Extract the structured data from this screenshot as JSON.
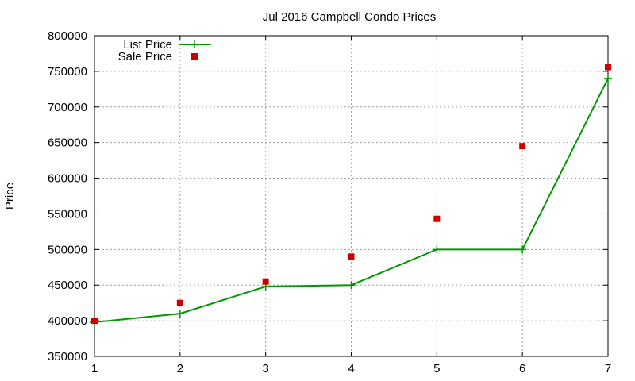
{
  "chart_data": {
    "type": "line",
    "title": "Jul 2016 Campbell Condo Prices",
    "xlabel": "",
    "ylabel": "Price",
    "x": [
      1,
      2,
      3,
      4,
      5,
      6,
      7
    ],
    "x_ticks": [
      "1",
      "2",
      "3",
      "4",
      "5",
      "6",
      "7"
    ],
    "y_ticks": [
      "350000",
      "400000",
      "450000",
      "500000",
      "550000",
      "600000",
      "650000",
      "700000",
      "750000",
      "800000"
    ],
    "xlim": [
      1,
      7
    ],
    "ylim": [
      350000,
      800000
    ],
    "grid": true,
    "legend_position": "top-left",
    "series": [
      {
        "name": "List Price",
        "style": "line-with-plus-markers",
        "color": "#009900",
        "values": [
          398000,
          410000,
          448000,
          450000,
          500000,
          500000,
          740000
        ]
      },
      {
        "name": "Sale Price",
        "style": "square-markers",
        "color": "#cc0000",
        "values": [
          400000,
          425000,
          455000,
          490000,
          543000,
          645000,
          756000
        ]
      }
    ]
  }
}
